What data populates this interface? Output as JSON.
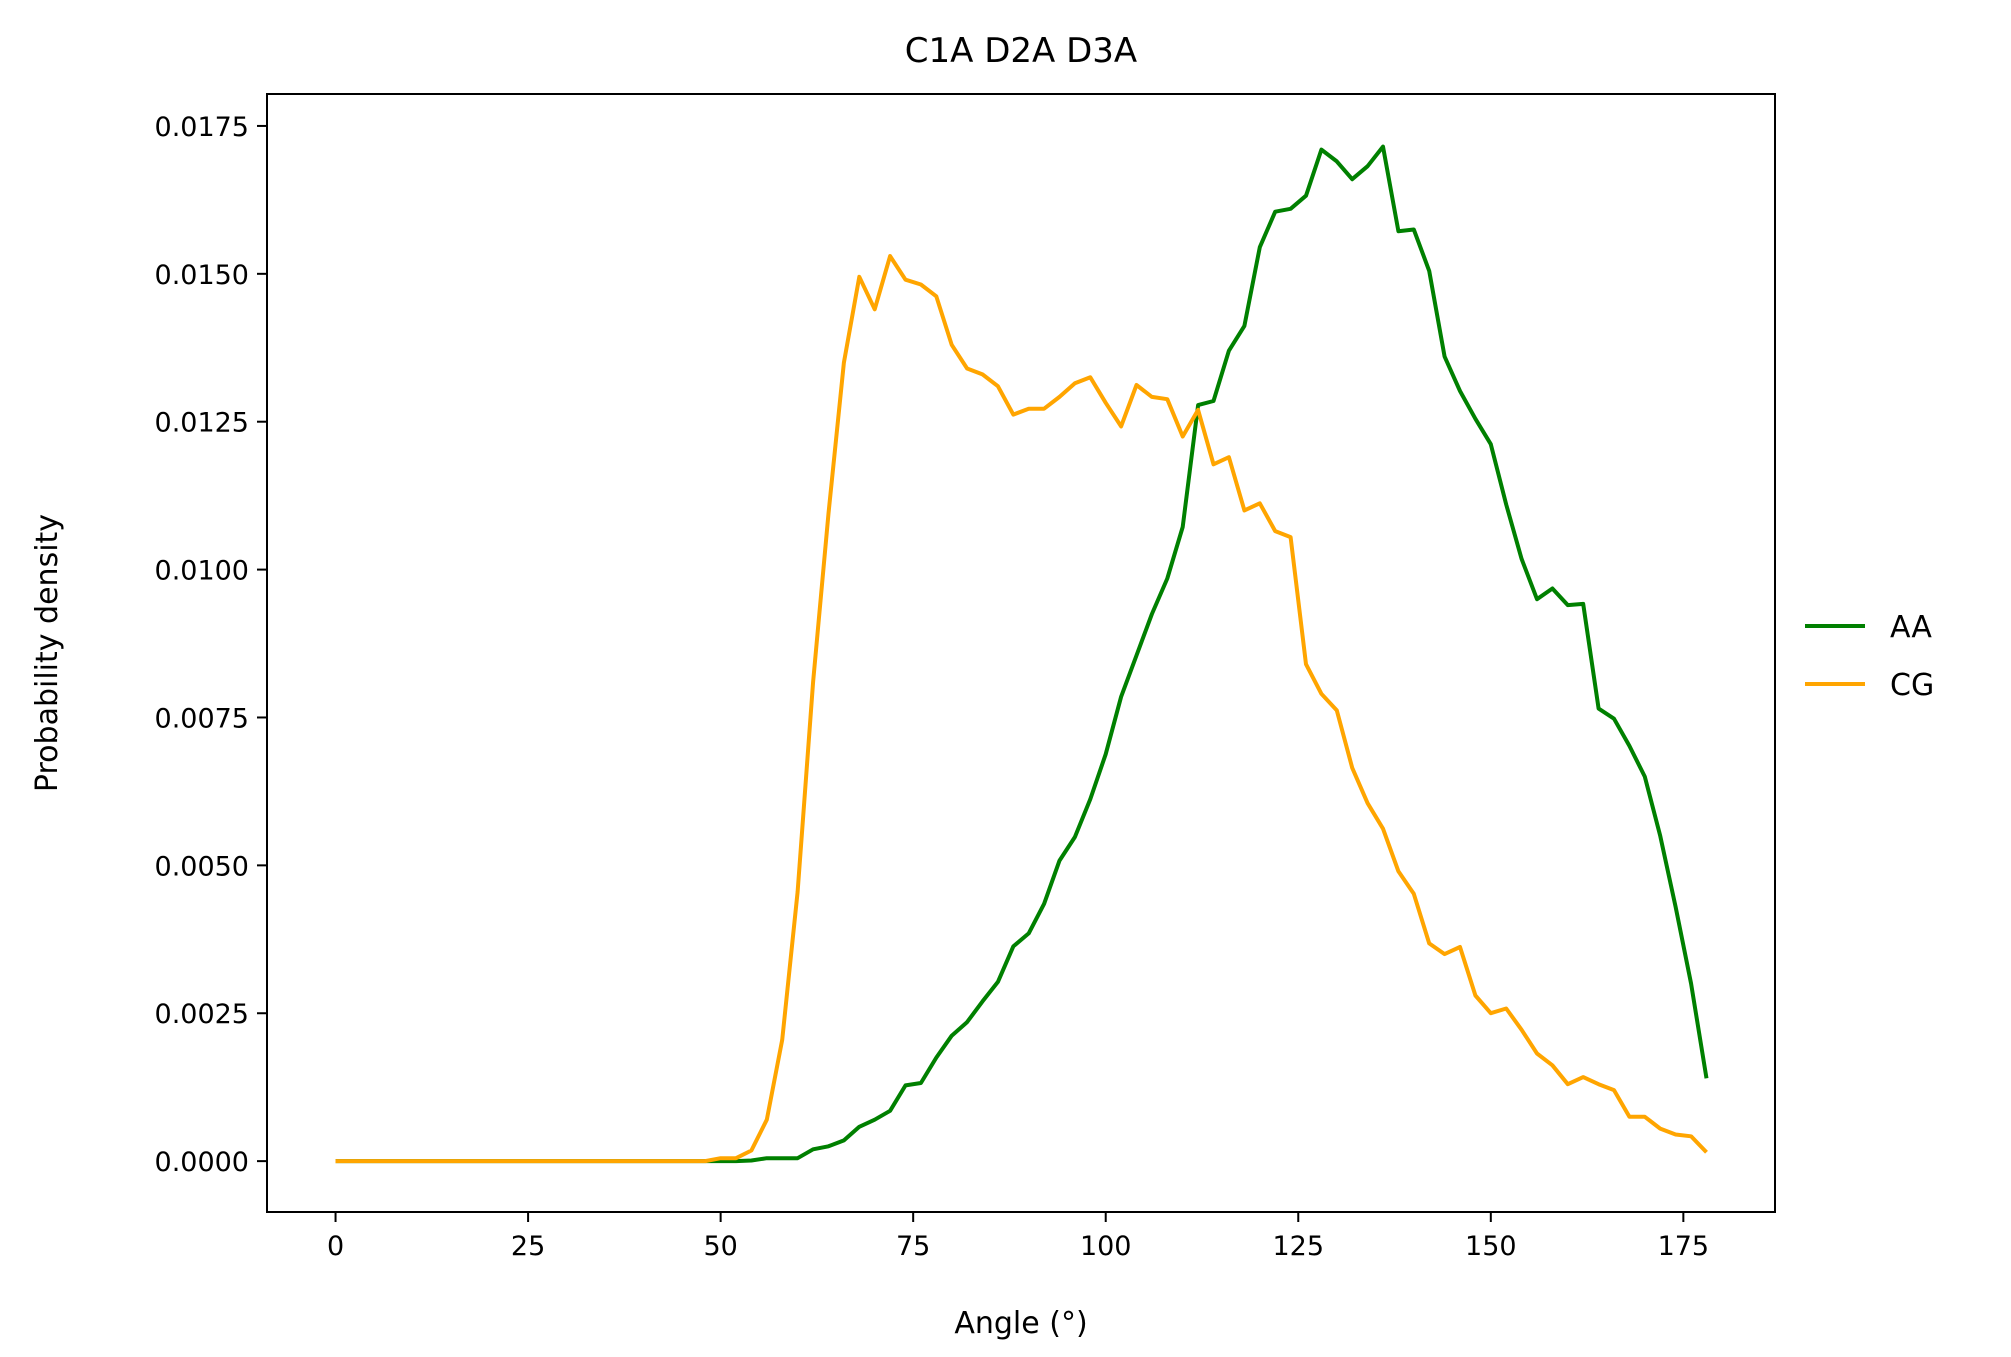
{
  "chart_data": {
    "type": "line",
    "title": "C1A D2A D3A",
    "xlabel": "Angle (°)",
    "ylabel": "Probability density",
    "xlim": [
      -8.9,
      186.9
    ],
    "ylim": [
      -0.00086,
      0.01804
    ],
    "xticks": [
      {
        "value": 0,
        "label": "0"
      },
      {
        "value": 25,
        "label": "25"
      },
      {
        "value": 50,
        "label": "50"
      },
      {
        "value": 75,
        "label": "75"
      },
      {
        "value": 100,
        "label": "100"
      },
      {
        "value": 125,
        "label": "125"
      },
      {
        "value": 150,
        "label": "150"
      },
      {
        "value": 175,
        "label": "175"
      }
    ],
    "yticks": [
      {
        "value": 0.0,
        "label": "0.0000"
      },
      {
        "value": 0.0025,
        "label": "0.0025"
      },
      {
        "value": 0.005,
        "label": "0.0050"
      },
      {
        "value": 0.0075,
        "label": "0.0075"
      },
      {
        "value": 0.01,
        "label": "0.0100"
      },
      {
        "value": 0.0125,
        "label": "0.0125"
      },
      {
        "value": 0.015,
        "label": "0.0150"
      },
      {
        "value": 0.0175,
        "label": "0.0175"
      }
    ],
    "grid": false,
    "legend_position": "center-right outside",
    "x": [
      0,
      2,
      4,
      6,
      8,
      10,
      12,
      14,
      16,
      18,
      20,
      22,
      24,
      26,
      28,
      30,
      32,
      34,
      36,
      38,
      40,
      42,
      44,
      46,
      48,
      50,
      52,
      54,
      56,
      58,
      60,
      62,
      64,
      66,
      68,
      70,
      72,
      74,
      76,
      78,
      80,
      82,
      84,
      86,
      88,
      90,
      92,
      94,
      96,
      98,
      100,
      102,
      104,
      106,
      108,
      110,
      112,
      114,
      116,
      118,
      120,
      122,
      124,
      126,
      128,
      130,
      132,
      134,
      136,
      138,
      140,
      142,
      144,
      146,
      148,
      150,
      152,
      154,
      156,
      158,
      160,
      162,
      164,
      166,
      168,
      170,
      172,
      174,
      176,
      178
    ],
    "series": [
      {
        "name": "AA",
        "color": "#008000",
        "values": [
          0,
          0,
          0,
          0,
          0,
          0,
          0,
          0,
          0,
          0,
          0,
          0,
          0,
          0,
          0,
          0,
          0,
          0,
          0,
          0,
          0,
          0,
          0,
          0,
          0,
          0,
          0,
          1e-05,
          5e-05,
          5e-05,
          5e-05,
          0.0002,
          0.00025,
          0.00035,
          0.00058,
          0.0007,
          0.00085,
          0.00128,
          0.00132,
          0.00175,
          0.00212,
          0.00235,
          0.0027,
          0.00303,
          0.00363,
          0.00385,
          0.00435,
          0.00508,
          0.00548,
          0.00612,
          0.00688,
          0.00785,
          0.00855,
          0.00925,
          0.00985,
          0.01072,
          0.01278,
          0.01285,
          0.0137,
          0.01412,
          0.01545,
          0.01605,
          0.0161,
          0.01632,
          0.0171,
          0.0169,
          0.0166,
          0.01682,
          0.01715,
          0.01572,
          0.01575,
          0.01505,
          0.0136,
          0.01302,
          0.01255,
          0.01212,
          0.0111,
          0.01018,
          0.0095,
          0.00968,
          0.0094,
          0.00942,
          0.00765,
          0.00748,
          0.00702,
          0.0065,
          0.0055,
          0.0043,
          0.003,
          0.0014
        ]
      },
      {
        "name": "CG",
        "color": "#ffa500",
        "values": [
          0,
          0,
          0,
          0,
          0,
          0,
          0,
          0,
          0,
          0,
          0,
          0,
          0,
          0,
          0,
          0,
          0,
          0,
          0,
          0,
          0,
          0,
          0,
          0,
          0,
          5e-05,
          5e-05,
          0.00018,
          0.0007,
          0.00205,
          0.00455,
          0.0081,
          0.01095,
          0.0135,
          0.01495,
          0.0144,
          0.0153,
          0.0149,
          0.01482,
          0.01462,
          0.0138,
          0.0134,
          0.0133,
          0.0131,
          0.01262,
          0.01272,
          0.01272,
          0.01292,
          0.01315,
          0.01325,
          0.01282,
          0.01242,
          0.01312,
          0.01292,
          0.01288,
          0.01225,
          0.0127,
          0.01178,
          0.0119,
          0.011,
          0.01112,
          0.01065,
          0.01055,
          0.0084,
          0.0079,
          0.00762,
          0.00665,
          0.00605,
          0.00562,
          0.0049,
          0.00452,
          0.00368,
          0.0035,
          0.00362,
          0.0028,
          0.0025,
          0.00258,
          0.00222,
          0.00182,
          0.00162,
          0.0013,
          0.00142,
          0.0013,
          0.0012,
          0.00075,
          0.00075,
          0.00055,
          0.00045,
          0.00042,
          0.00015
        ]
      }
    ]
  }
}
